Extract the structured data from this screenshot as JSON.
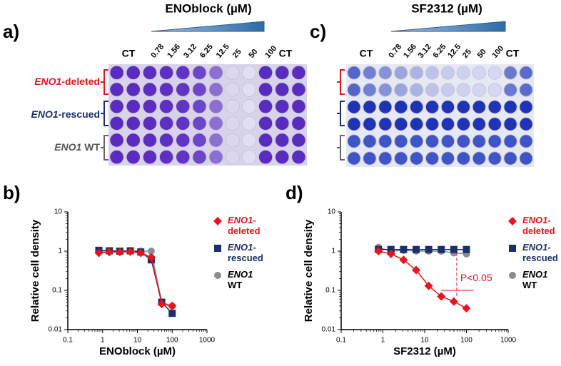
{
  "plates": [
    {
      "letter": "a)",
      "title": "ENOblock (µM)",
      "columns": [
        "CT",
        "0.78",
        "1.56",
        "3.12",
        "6.25",
        "12.5",
        "25",
        "50",
        "100",
        "CT"
      ],
      "rows": [
        {
          "gene": "ENO1",
          "suffix": "-deleted"
        },
        {
          "gene": "ENO1",
          "suffix": "-rescued"
        },
        {
          "gene": "ENO1",
          "suffix": " WT"
        }
      ]
    },
    {
      "letter": "c)",
      "title": "SF2312 (µM)",
      "columns": [
        "CT",
        "0.78",
        "1.56",
        "3.12",
        "6.25",
        "12.5",
        "25",
        "50",
        "100",
        "CT"
      ]
    }
  ],
  "chart_data": [
    {
      "type": "line",
      "letter": "b)",
      "xlabel": "ENOblock (µM)",
      "ylabel": "Relative cell density",
      "log_x": true,
      "log_y": true,
      "xlim": [
        0.1,
        1000
      ],
      "ylim": [
        0.01,
        10
      ],
      "xticks": [
        0.1,
        1,
        10,
        100,
        1000
      ],
      "yticks": [
        0.01,
        0.1,
        1,
        10
      ],
      "x": [
        0.78,
        1.56,
        3.12,
        6.25,
        12.5,
        25,
        50,
        100
      ],
      "series": [
        {
          "name": "ENO1-deleted",
          "color": "#e8141b",
          "marker": "diamond",
          "values": [
            0.9,
            0.95,
            0.95,
            0.97,
            0.9,
            0.7,
            0.045,
            0.04
          ]
        },
        {
          "name": "ENO1-rescued",
          "color": "#1a2f6e",
          "marker": "square",
          "values": [
            1.05,
            1.02,
            1.0,
            1.02,
            0.95,
            0.6,
            0.05,
            0.026
          ]
        },
        {
          "name": "ENO1 WT",
          "color": "#8c8c8c",
          "marker": "circle",
          "values": [
            1.0,
            1.0,
            1.0,
            1.0,
            1.0,
            1.0,
            0.05,
            0.04
          ]
        }
      ]
    },
    {
      "type": "line",
      "letter": "d)",
      "xlabel": "SF2312 (µM)",
      "ylabel": "Relative cell density",
      "annotation": "P<0.05",
      "log_x": true,
      "log_y": true,
      "xlim": [
        0.1,
        1000
      ],
      "ylim": [
        0.01,
        10
      ],
      "xticks": [
        0.1,
        1,
        10,
        100,
        1000
      ],
      "yticks": [
        0.01,
        0.1,
        1,
        10
      ],
      "x": [
        0.78,
        1.56,
        3.12,
        6.25,
        12.5,
        25,
        50,
        100
      ],
      "series": [
        {
          "name": "ENO1-deleted",
          "color": "#e8141b",
          "marker": "diamond",
          "values": [
            1.0,
            0.85,
            0.6,
            0.33,
            0.13,
            0.07,
            0.052,
            0.035
          ]
        },
        {
          "name": "ENO1-rescued",
          "color": "#1a2f6e",
          "marker": "square",
          "values": [
            1.1,
            1.1,
            1.1,
            1.1,
            1.1,
            1.1,
            1.1,
            1.1
          ]
        },
        {
          "name": "ENO1 WT",
          "color": "#8c8c8c",
          "marker": "circle",
          "values": [
            1.25,
            1.0,
            1.05,
            1.0,
            1.0,
            1.0,
            0.9,
            0.85
          ]
        }
      ]
    }
  ]
}
